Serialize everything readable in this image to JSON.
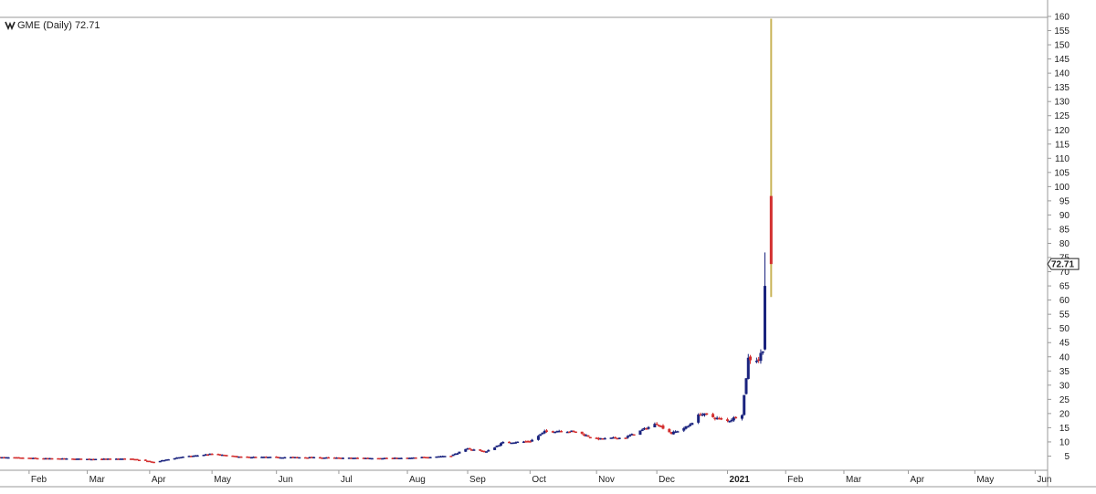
{
  "chart_data": {
    "type": "candlestick",
    "title": "GME (Daily) 72.71",
    "symbol": "GME",
    "period": "Daily",
    "last_price": 72.71,
    "last_price_label": "72.71",
    "ylim": [
      0,
      160
    ],
    "y_ticks": [
      5,
      10,
      15,
      20,
      25,
      30,
      35,
      40,
      45,
      50,
      55,
      60,
      65,
      70,
      75,
      80,
      85,
      90,
      95,
      100,
      105,
      110,
      115,
      120,
      125,
      130,
      135,
      140,
      145,
      150,
      155,
      160
    ],
    "x_start": "2020-01-20",
    "x_end": "2021-06-07",
    "x_ticks": [
      {
        "date": "2020-02-03",
        "label": "Feb"
      },
      {
        "date": "2020-03-02",
        "label": "Mar"
      },
      {
        "date": "2020-04-01",
        "label": "Apr"
      },
      {
        "date": "2020-05-01",
        "label": "May"
      },
      {
        "date": "2020-06-01",
        "label": "Jun"
      },
      {
        "date": "2020-07-01",
        "label": "Jul"
      },
      {
        "date": "2020-08-03",
        "label": "Aug"
      },
      {
        "date": "2020-09-01",
        "label": "Sep"
      },
      {
        "date": "2020-10-01",
        "label": "Oct"
      },
      {
        "date": "2020-11-02",
        "label": "Nov"
      },
      {
        "date": "2020-12-01",
        "label": "Dec"
      },
      {
        "date": "2021-01-04",
        "label": "2021",
        "bold": true
      },
      {
        "date": "2021-02-01",
        "label": "Feb"
      },
      {
        "date": "2021-03-01",
        "label": "Mar"
      },
      {
        "date": "2021-04-01",
        "label": "Apr"
      },
      {
        "date": "2021-05-03",
        "label": "May"
      },
      {
        "date": "2021-06-01",
        "label": "Jun"
      }
    ],
    "colors": {
      "up": "#1a237e",
      "down": "#d32f2f",
      "last": "#c9b458",
      "text": "#222222",
      "grid": "#e6e6e6"
    },
    "grid": false,
    "close_trend": [
      [
        "2020-01-20",
        4.6
      ],
      [
        "2020-02-10",
        4.2
      ],
      [
        "2020-03-02",
        4.0
      ],
      [
        "2020-03-23",
        4.1
      ],
      [
        "2020-04-03",
        2.9
      ],
      [
        "2020-04-15",
        4.6
      ],
      [
        "2020-05-01",
        5.8
      ],
      [
        "2020-05-15",
        4.7
      ],
      [
        "2020-06-15",
        4.6
      ],
      [
        "2020-07-01",
        4.4
      ],
      [
        "2020-08-03",
        4.3
      ],
      [
        "2020-08-24",
        5.2
      ],
      [
        "2020-09-01",
        7.6
      ],
      [
        "2020-09-10",
        6.6
      ],
      [
        "2020-09-18",
        9.8
      ],
      [
        "2020-10-01",
        10.2
      ],
      [
        "2020-10-08",
        13.6
      ],
      [
        "2020-10-16",
        14.0
      ],
      [
        "2020-10-23",
        13.6
      ],
      [
        "2020-11-02",
        11.0
      ],
      [
        "2020-11-16",
        11.6
      ],
      [
        "2020-12-01",
        16.5
      ],
      [
        "2020-12-08",
        13.0
      ],
      [
        "2020-12-16",
        15.5
      ],
      [
        "2020-12-22",
        20.0
      ],
      [
        "2021-01-04",
        17.3
      ],
      [
        "2021-01-11",
        19.9
      ],
      [
        "2021-01-14",
        39.4
      ],
      [
        "2021-01-19",
        39.0
      ],
      [
        "2021-01-21",
        43.0
      ]
    ],
    "candles": [
      {
        "date": "2021-01-22",
        "open": 42.6,
        "high": 76.8,
        "low": 42.3,
        "close": 65.0
      },
      {
        "date": "2021-01-25",
        "open": 96.7,
        "high": 159.2,
        "low": 61.1,
        "close": 72.71
      }
    ]
  }
}
